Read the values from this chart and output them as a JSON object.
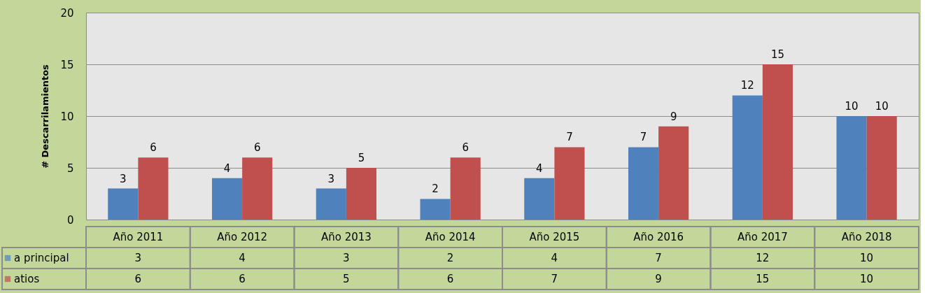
{
  "chart_data": {
    "type": "bar",
    "ylabel": "# Descarrilamientos",
    "categories": [
      "Año 2011",
      "Año 2012",
      "Año 2013",
      "Año 2014",
      "Año 2015",
      "Año 2016",
      "Año 2017",
      "Año 2018"
    ],
    "series": [
      {
        "name": "a principal",
        "color": "#4f81bd",
        "values": [
          3,
          4,
          3,
          2,
          4,
          7,
          12,
          10
        ],
        "value_labels": [
          "3",
          "4",
          "3",
          "2",
          "4",
          "7",
          "12",
          "10"
        ]
      },
      {
        "name": "atios",
        "color": "#c0504d",
        "values": [
          6,
          6,
          5,
          6,
          7,
          9,
          15,
          10
        ],
        "value_labels": [
          "6",
          "6",
          "5",
          "6",
          "7",
          "9",
          "15",
          "10"
        ]
      }
    ],
    "annotations": [
      "3",
      "4",
      "3",
      "2",
      "4",
      "7",
      "12",
      "10",
      "6",
      "6",
      "5",
      "6",
      "7",
      "9",
      "15",
      "10"
    ],
    "ylim": [
      0,
      20
    ],
    "yticks": [
      0,
      5,
      10,
      15,
      20
    ],
    "grid": "y",
    "legend": "bottom left"
  }
}
